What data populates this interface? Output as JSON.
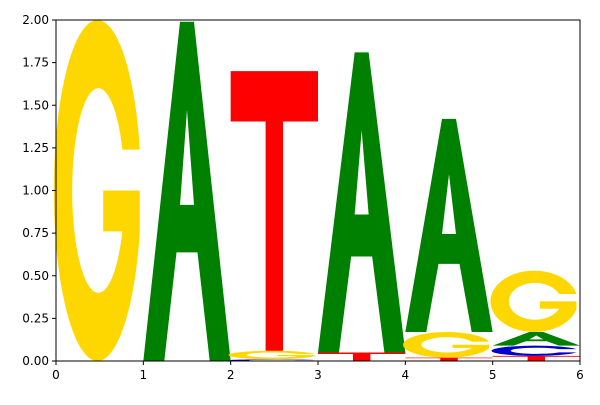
{
  "chart_data": {
    "type": "sequence-logo",
    "title": "",
    "xlabel": "",
    "ylabel": "",
    "xlim": [
      0,
      6
    ],
    "ylim": [
      0,
      2.0
    ],
    "grid": false,
    "legend": "none",
    "xticks": [
      "0",
      "1",
      "2",
      "3",
      "4",
      "5",
      "6"
    ],
    "yticks": [
      "0.00",
      "0.25",
      "0.50",
      "0.75",
      "1.00",
      "1.25",
      "1.50",
      "1.75",
      "2.00"
    ],
    "colors": {
      "A": "#008000",
      "C": "#0000CC",
      "G": "#FFD700",
      "T": "#FF0000"
    },
    "positions": [
      {
        "x0": 0,
        "x1": 1,
        "letters": [
          {
            "base": "G",
            "height": 2.0
          }
        ]
      },
      {
        "x0": 1,
        "x1": 2,
        "letters": [
          {
            "base": "A",
            "height": 1.99
          }
        ]
      },
      {
        "x0": 2,
        "x1": 3,
        "letters": [
          {
            "base": "C",
            "height": 0.01
          },
          {
            "base": "G",
            "height": 0.05
          },
          {
            "base": "T",
            "height": 1.64
          }
        ]
      },
      {
        "x0": 3,
        "x1": 4,
        "letters": [
          {
            "base": "T",
            "height": 0.05
          },
          {
            "base": "A",
            "height": 1.76
          }
        ]
      },
      {
        "x0": 4,
        "x1": 5,
        "letters": [
          {
            "base": "T",
            "height": 0.02
          },
          {
            "base": "G",
            "height": 0.15
          },
          {
            "base": "A",
            "height": 1.25
          }
        ]
      },
      {
        "x0": 5,
        "x1": 6,
        "letters": [
          {
            "base": "T",
            "height": 0.03
          },
          {
            "base": "C",
            "height": 0.06
          },
          {
            "base": "A",
            "height": 0.08
          },
          {
            "base": "G",
            "height": 0.36
          }
        ]
      }
    ]
  }
}
